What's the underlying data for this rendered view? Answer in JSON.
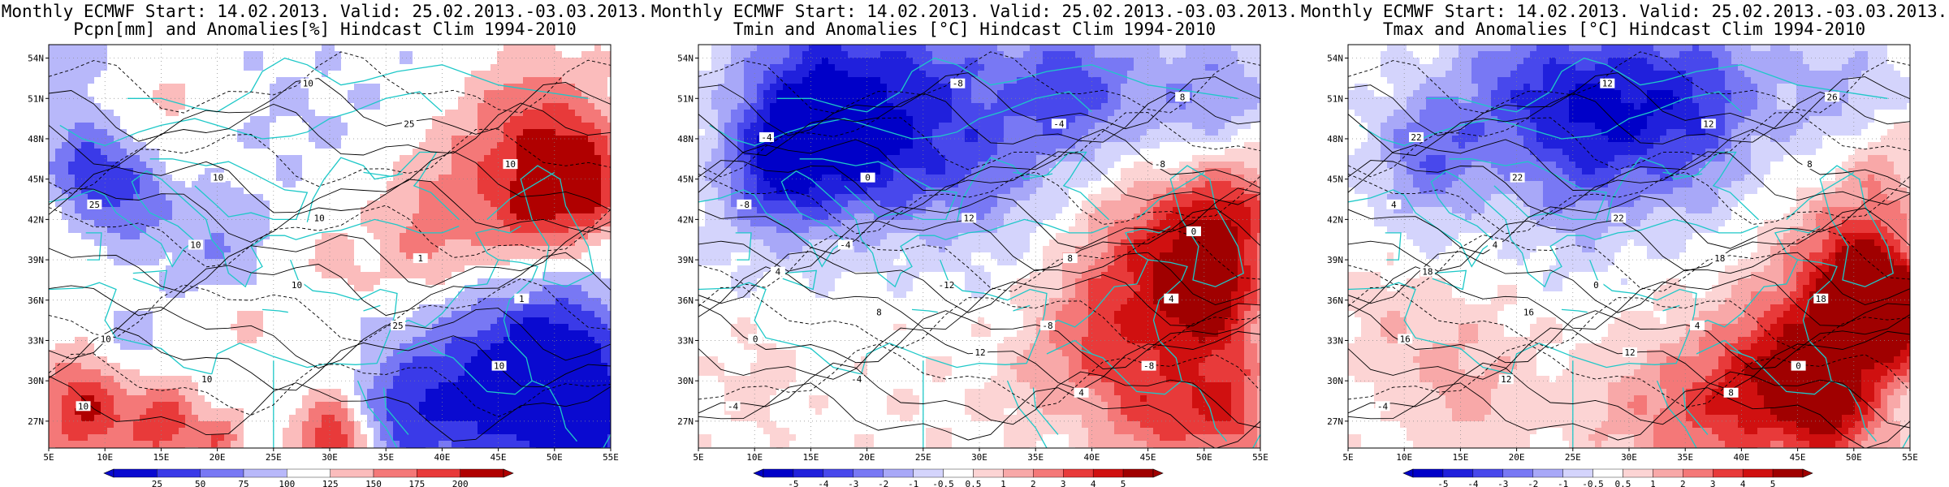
{
  "panels": [
    {
      "title_line1": "Monthly ECMWF Start: 14.02.2013. Valid: 25.02.2013.-03.03.2013.",
      "title_line2": "Pcpn[mm] and Anomalies[%] Hindcast Clim 1994-2010",
      "colorbar_labels": [
        "25",
        "50",
        "75",
        "100",
        "125",
        "150",
        "175",
        "200"
      ],
      "colorbar_colors": [
        "#0a0ad0",
        "#3a3ae8",
        "#7878f4",
        "#b8b8fa",
        "#ffffff",
        "#fbbcbc",
        "#f47878",
        "#e83a3a",
        "#b00000"
      ],
      "contour_labels": [
        "10",
        "10",
        "25",
        "10",
        "10",
        "25",
        "10",
        "25",
        "10",
        "10",
        "10",
        "1",
        "1",
        "10",
        "10"
      ],
      "scheme": "precip"
    },
    {
      "title_line1": "Monthly ECMWF Start: 14.02.2013. Valid: 25.02.2013.-03.03.2013.",
      "title_line2": "Tmin and Anomalies [°C] Hindcast Clim 1994-2010",
      "colorbar_labels": [
        "-5",
        "-4",
        "-3",
        "-2",
        "-1",
        "-0.5",
        "0.5",
        "1",
        "2",
        "3",
        "4",
        "5"
      ],
      "colorbar_colors": [
        "#0000c8",
        "#2020dc",
        "#4848ec",
        "#7878f4",
        "#a8a8f8",
        "#d4d4fc",
        "#ffffff",
        "#fcd4d4",
        "#f8a8a8",
        "#f47878",
        "#e83a3a",
        "#d01010",
        "#a00000"
      ],
      "contour_labels": [
        "-4",
        "-8",
        "-8",
        "-12",
        "-4",
        "-8",
        "-8",
        "-4",
        "-8",
        "-4",
        "0",
        "4",
        "8",
        "12",
        "0",
        "-4",
        "8",
        "4",
        "12",
        "8",
        "4",
        "0"
      ],
      "scheme": "tmin"
    },
    {
      "title_line1": "Monthly ECMWF Start: 14.02.2013. Valid: 25.02.2013.-03.03.2013.",
      "title_line2": "Tmax and Anomalies [°C] Hindcast Clim 1994-2010",
      "colorbar_labels": [
        "-5",
        "-4",
        "-3",
        "-2",
        "-1",
        "-0.5",
        "0.5",
        "1",
        "2",
        "3",
        "4",
        "5"
      ],
      "colorbar_colors": [
        "#0000c8",
        "#2020dc",
        "#4848ec",
        "#7878f4",
        "#a8a8f8",
        "#d4d4fc",
        "#ffffff",
        "#fcd4d4",
        "#f8a8a8",
        "#f47878",
        "#e83a3a",
        "#d01010",
        "#a00000"
      ],
      "contour_labels": [
        "-4",
        "0",
        "4",
        "0",
        "4",
        "4",
        "8",
        "12",
        "12",
        "12",
        "16",
        "18",
        "18",
        "22",
        "22",
        "22",
        "26",
        "8",
        "12",
        "16",
        "18"
      ],
      "scheme": "tmax"
    }
  ],
  "lat_labels": [
    "54N",
    "51N",
    "48N",
    "45N",
    "42N",
    "39N",
    "36N",
    "33N",
    "30N",
    "27N"
  ],
  "lon_labels": [
    "5E",
    "10E",
    "15E",
    "20E",
    "25E",
    "30E",
    "35E",
    "40E",
    "45E",
    "50E",
    "55E"
  ]
}
